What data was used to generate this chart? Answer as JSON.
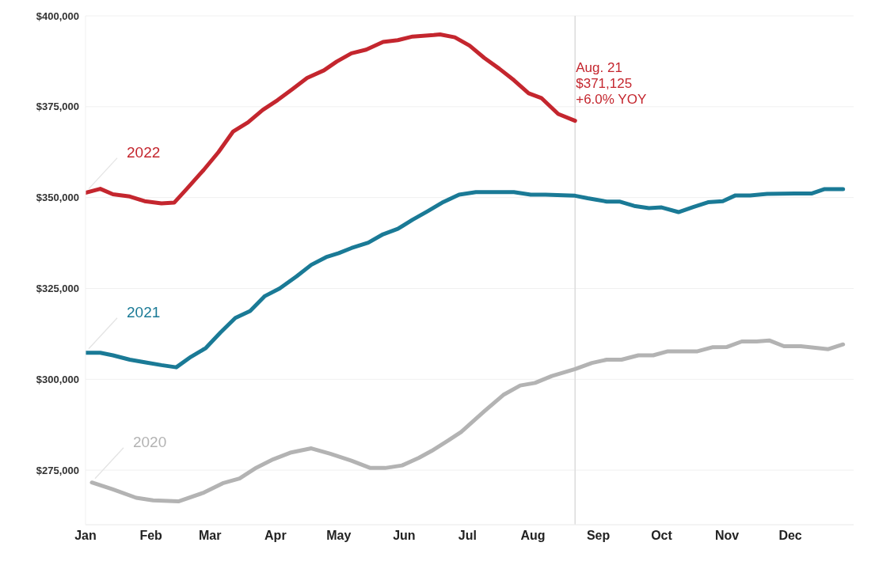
{
  "chart_data": {
    "type": "line",
    "series": [
      {
        "name": "2022",
        "color": "#c4262e",
        "x": [
          "--01-01",
          "--01-08",
          "--01-14",
          "--01-22",
          "--01-29",
          "--02-06",
          "--02-12",
          "--02-18",
          "--02-26",
          "--03-05",
          "--03-12",
          "--03-19",
          "--03-26",
          "--04-02",
          "--04-09",
          "--04-16",
          "--04-24",
          "--04-30",
          "--05-07",
          "--05-14",
          "--05-22",
          "--05-29",
          "--06-05",
          "--06-15",
          "--06-18",
          "--06-25",
          "--07-02",
          "--07-09",
          "--07-16",
          "--07-23",
          "--07-30",
          "--08-05",
          "--08-13",
          "--08-21"
        ],
        "values": [
          351300,
          352400,
          350900,
          350300,
          349000,
          348400,
          348600,
          352400,
          357600,
          362500,
          368200,
          370700,
          374100,
          376800,
          379800,
          382900,
          385000,
          387400,
          389700,
          390700,
          392800,
          393300,
          394300,
          394700,
          394900,
          394100,
          391800,
          388400,
          385500,
          382300,
          378700,
          377400,
          373000,
          371125
        ]
      },
      {
        "name": "2021",
        "color": "#1a7a96",
        "x": [
          "--01-01",
          "--01-08",
          "--01-14",
          "--01-22",
          "--01-29",
          "--02-06",
          "--02-13",
          "--02-20",
          "--02-27",
          "--03-06",
          "--03-13",
          "--03-20",
          "--03-27",
          "--04-03",
          "--04-11",
          "--04-18",
          "--04-25",
          "--05-01",
          "--05-07",
          "--05-15",
          "--05-22",
          "--05-29",
          "--06-05",
          "--06-12",
          "--06-19",
          "--06-27",
          "--07-05",
          "--07-23",
          "--07-31",
          "--08-07",
          "--08-21",
          "--08-27",
          "--09-05",
          "--09-11",
          "--09-18",
          "--09-25",
          "--10-01",
          "--10-09",
          "--10-16",
          "--10-23",
          "--10-30",
          "--11-05",
          "--11-12",
          "--11-20",
          "--12-03",
          "--12-11",
          "--12-17",
          "--12-26"
        ],
        "values": [
          307300,
          307300,
          306600,
          305400,
          304700,
          303900,
          303300,
          306200,
          308600,
          312900,
          316900,
          318800,
          322900,
          325000,
          328300,
          331500,
          333600,
          334700,
          336100,
          337600,
          339900,
          341400,
          343900,
          346200,
          348600,
          350800,
          351500,
          351500,
          350800,
          350800,
          350500,
          349800,
          348900,
          348900,
          347700,
          347100,
          347300,
          346000,
          347400,
          348700,
          349000,
          350600,
          350600,
          351000,
          351100,
          351100,
          352300,
          352300
        ]
      },
      {
        "name": "2020",
        "color": "#b3b3b3",
        "x": [
          "--01-04",
          "--01-14",
          "--01-25",
          "--02-02",
          "--02-14",
          "--02-26",
          "--03-07",
          "--03-15",
          "--03-23",
          "--03-31",
          "--04-08",
          "--04-18",
          "--04-27",
          "--05-07",
          "--05-16",
          "--05-23",
          "--05-31",
          "--06-08",
          "--06-14",
          "--06-22",
          "--06-28",
          "--07-09",
          "--07-18",
          "--07-26",
          "--08-02",
          "--08-10",
          "--08-21",
          "--08-29",
          "--09-05",
          "--09-12",
          "--09-20",
          "--09-27",
          "--10-04",
          "--10-18",
          "--10-25",
          "--11-01",
          "--11-08",
          "--11-15",
          "--11-21",
          "--11-28",
          "--12-06",
          "--12-19",
          "--12-26"
        ],
        "values": [
          271600,
          269700,
          267400,
          266700,
          266400,
          268800,
          271400,
          272700,
          275700,
          278000,
          279800,
          281000,
          279500,
          277600,
          275600,
          275600,
          276300,
          278400,
          280300,
          283200,
          285500,
          291200,
          295700,
          298300,
          299000,
          300900,
          302800,
          304500,
          305400,
          305400,
          306600,
          306600,
          307700,
          307700,
          308800,
          308900,
          310400,
          310400,
          310700,
          309100,
          309100,
          308300,
          309600
        ]
      }
    ],
    "xlim": [
      "--01-01",
      "--12-31"
    ],
    "xticks": [
      {
        "value": "--01-01",
        "label": "Jan"
      },
      {
        "value": "--02-01",
        "label": "Feb"
      },
      {
        "value": "--03-01",
        "label": "Mar"
      },
      {
        "value": "--04-01",
        "label": "Apr"
      },
      {
        "value": "--05-01",
        "label": "May"
      },
      {
        "value": "--06-01",
        "label": "Jun"
      },
      {
        "value": "--07-01",
        "label": "Jul"
      },
      {
        "value": "--08-01",
        "label": "Aug"
      },
      {
        "value": "--09-01",
        "label": "Sep"
      },
      {
        "value": "--10-01",
        "label": "Oct"
      },
      {
        "value": "--11-01",
        "label": "Nov"
      },
      {
        "value": "--12-01",
        "label": "Dec"
      }
    ],
    "ylim": [
      260000,
      400000
    ],
    "yticks": [
      {
        "value": 275000,
        "label": "$275,000"
      },
      {
        "value": 300000,
        "label": "$300,000"
      },
      {
        "value": 325000,
        "label": "$325,000"
      },
      {
        "value": 350000,
        "label": "$350,000"
      },
      {
        "value": 375000,
        "label": "$375,000"
      },
      {
        "value": 400000,
        "label": "$400,000"
      }
    ],
    "ref_lines": [
      {
        "axis": "x",
        "value": "--08-21",
        "color": "#dcdcdc"
      }
    ],
    "annotations": [
      {
        "text": "Aug. 21\n$371,125\n+6.0% YOY",
        "x": "--08-21",
        "y": 371125
      }
    ],
    "grid": "y",
    "legend": false,
    "marker": "none",
    "line_style": "solid"
  }
}
